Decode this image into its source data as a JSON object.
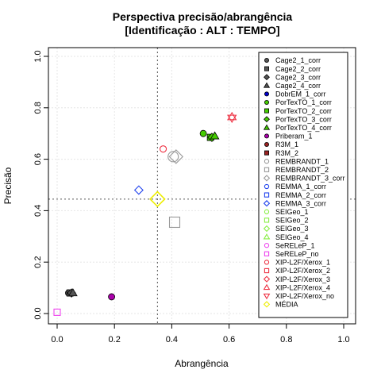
{
  "chart_data": {
    "type": "scatter",
    "title": "Perspectiva precisão/abrangência",
    "subtitle": "[Identificação : ALT : TEMPO]",
    "xlabel": "Abrangência",
    "ylabel": "Precisão",
    "xlim": [
      0,
      1
    ],
    "ylim": [
      0,
      1
    ],
    "xticks": [
      "0.0",
      "0.2",
      "0.4",
      "0.6",
      "0.8",
      "1.0"
    ],
    "yticks": [
      "0.0",
      "0.2",
      "0.4",
      "0.6",
      "0.8",
      "1.0"
    ],
    "grid": true,
    "legend_position": "top-right",
    "reference_lines": {
      "x": 0.35,
      "y": 0.445
    },
    "series": [
      {
        "name": "Cage2_1_corr",
        "color": "#555555",
        "marker": "circle-filled",
        "points": [
          [
            0.04,
            0.08
          ]
        ]
      },
      {
        "name": "Cage2_2_corr",
        "color": "#555555",
        "marker": "square-filled",
        "points": [
          [
            0.045,
            0.08
          ]
        ]
      },
      {
        "name": "Cage2_3_corr",
        "color": "#555555",
        "marker": "diamond-filled",
        "points": [
          [
            0.05,
            0.08
          ]
        ]
      },
      {
        "name": "Cage2_4_corr",
        "color": "#555555",
        "marker": "triangle-filled",
        "points": [
          [
            0.055,
            0.08
          ]
        ]
      },
      {
        "name": "DobrEM_1_corr",
        "color": "#0000cc",
        "marker": "circle-filled",
        "points": []
      },
      {
        "name": "PorTexTO_1_corr",
        "color": "#44cc00",
        "marker": "circle-filled",
        "points": [
          [
            0.51,
            0.7
          ]
        ]
      },
      {
        "name": "PorTexTO_2_corr",
        "color": "#44cc00",
        "marker": "square-filled",
        "points": [
          [
            0.535,
            0.685
          ]
        ]
      },
      {
        "name": "PorTexTO_3_corr",
        "color": "#44cc00",
        "marker": "diamond-filled",
        "points": [
          [
            0.54,
            0.685
          ]
        ]
      },
      {
        "name": "PorTexTO_4_corr",
        "color": "#44cc00",
        "marker": "triangle-filled",
        "points": [
          [
            0.55,
            0.69
          ]
        ]
      },
      {
        "name": "Priberam_1",
        "color": "#aa00aa",
        "marker": "circle-filled",
        "points": [
          [
            0.19,
            0.065
          ]
        ]
      },
      {
        "name": "R3M_1",
        "color": "#992222",
        "marker": "circle-filled",
        "points": []
      },
      {
        "name": "R3M_2",
        "color": "#992222",
        "marker": "square-filled",
        "points": []
      },
      {
        "name": "REMBRANDT_1",
        "color": "#999999",
        "marker": "circle",
        "points": [
          [
            0.405,
            0.61
          ]
        ]
      },
      {
        "name": "REMBRANDT_2",
        "color": "#999999",
        "marker": "square",
        "points": [
          [
            0.41,
            0.355
          ]
        ]
      },
      {
        "name": "REMBRANDT_3_corr",
        "color": "#999999",
        "marker": "diamond",
        "points": [
          [
            0.415,
            0.61
          ]
        ]
      },
      {
        "name": "REMMA_1_corr",
        "color": "#2244ee",
        "marker": "circle",
        "points": []
      },
      {
        "name": "REMMA_2_corr",
        "color": "#2244ee",
        "marker": "square",
        "points": []
      },
      {
        "name": "REMMA_3_corr",
        "color": "#2244ee",
        "marker": "diamond",
        "points": [
          [
            0.285,
            0.48
          ]
        ]
      },
      {
        "name": "SEIGeo_1",
        "color": "#88ee44",
        "marker": "circle",
        "points": []
      },
      {
        "name": "SEIGeo_2",
        "color": "#88ee44",
        "marker": "square",
        "points": []
      },
      {
        "name": "SEIGeo_3",
        "color": "#88ee44",
        "marker": "diamond",
        "points": []
      },
      {
        "name": "SEIGeo_4",
        "color": "#88ee44",
        "marker": "triangle",
        "points": []
      },
      {
        "name": "SeRELeP_1",
        "color": "#ee44ee",
        "marker": "circle",
        "points": []
      },
      {
        "name": "SeRELeP_no",
        "color": "#ee44ee",
        "marker": "square",
        "points": [
          [
            0.0,
            0.005
          ]
        ]
      },
      {
        "name": "XIP-L2F/Xerox_1",
        "color": "#ee3344",
        "marker": "circle",
        "points": [
          [
            0.37,
            0.64
          ]
        ]
      },
      {
        "name": "XIP-L2F/Xerox_2",
        "color": "#ee3344",
        "marker": "square",
        "points": []
      },
      {
        "name": "XIP-L2F/Xerox_3",
        "color": "#ee3344",
        "marker": "diamond",
        "points": []
      },
      {
        "name": "XIP-L2F/Xerox_4",
        "color": "#ee3344",
        "marker": "triangle",
        "points": [
          [
            0.61,
            0.765
          ]
        ]
      },
      {
        "name": "XIP-L2F/Xerox_no",
        "color": "#ee3344",
        "marker": "triangle-down",
        "points": [
          [
            0.61,
            0.76
          ]
        ]
      },
      {
        "name": "MÉDIA",
        "color": "#eeee00",
        "marker": "diamond-big",
        "points": [
          [
            0.35,
            0.445
          ]
        ]
      }
    ]
  }
}
